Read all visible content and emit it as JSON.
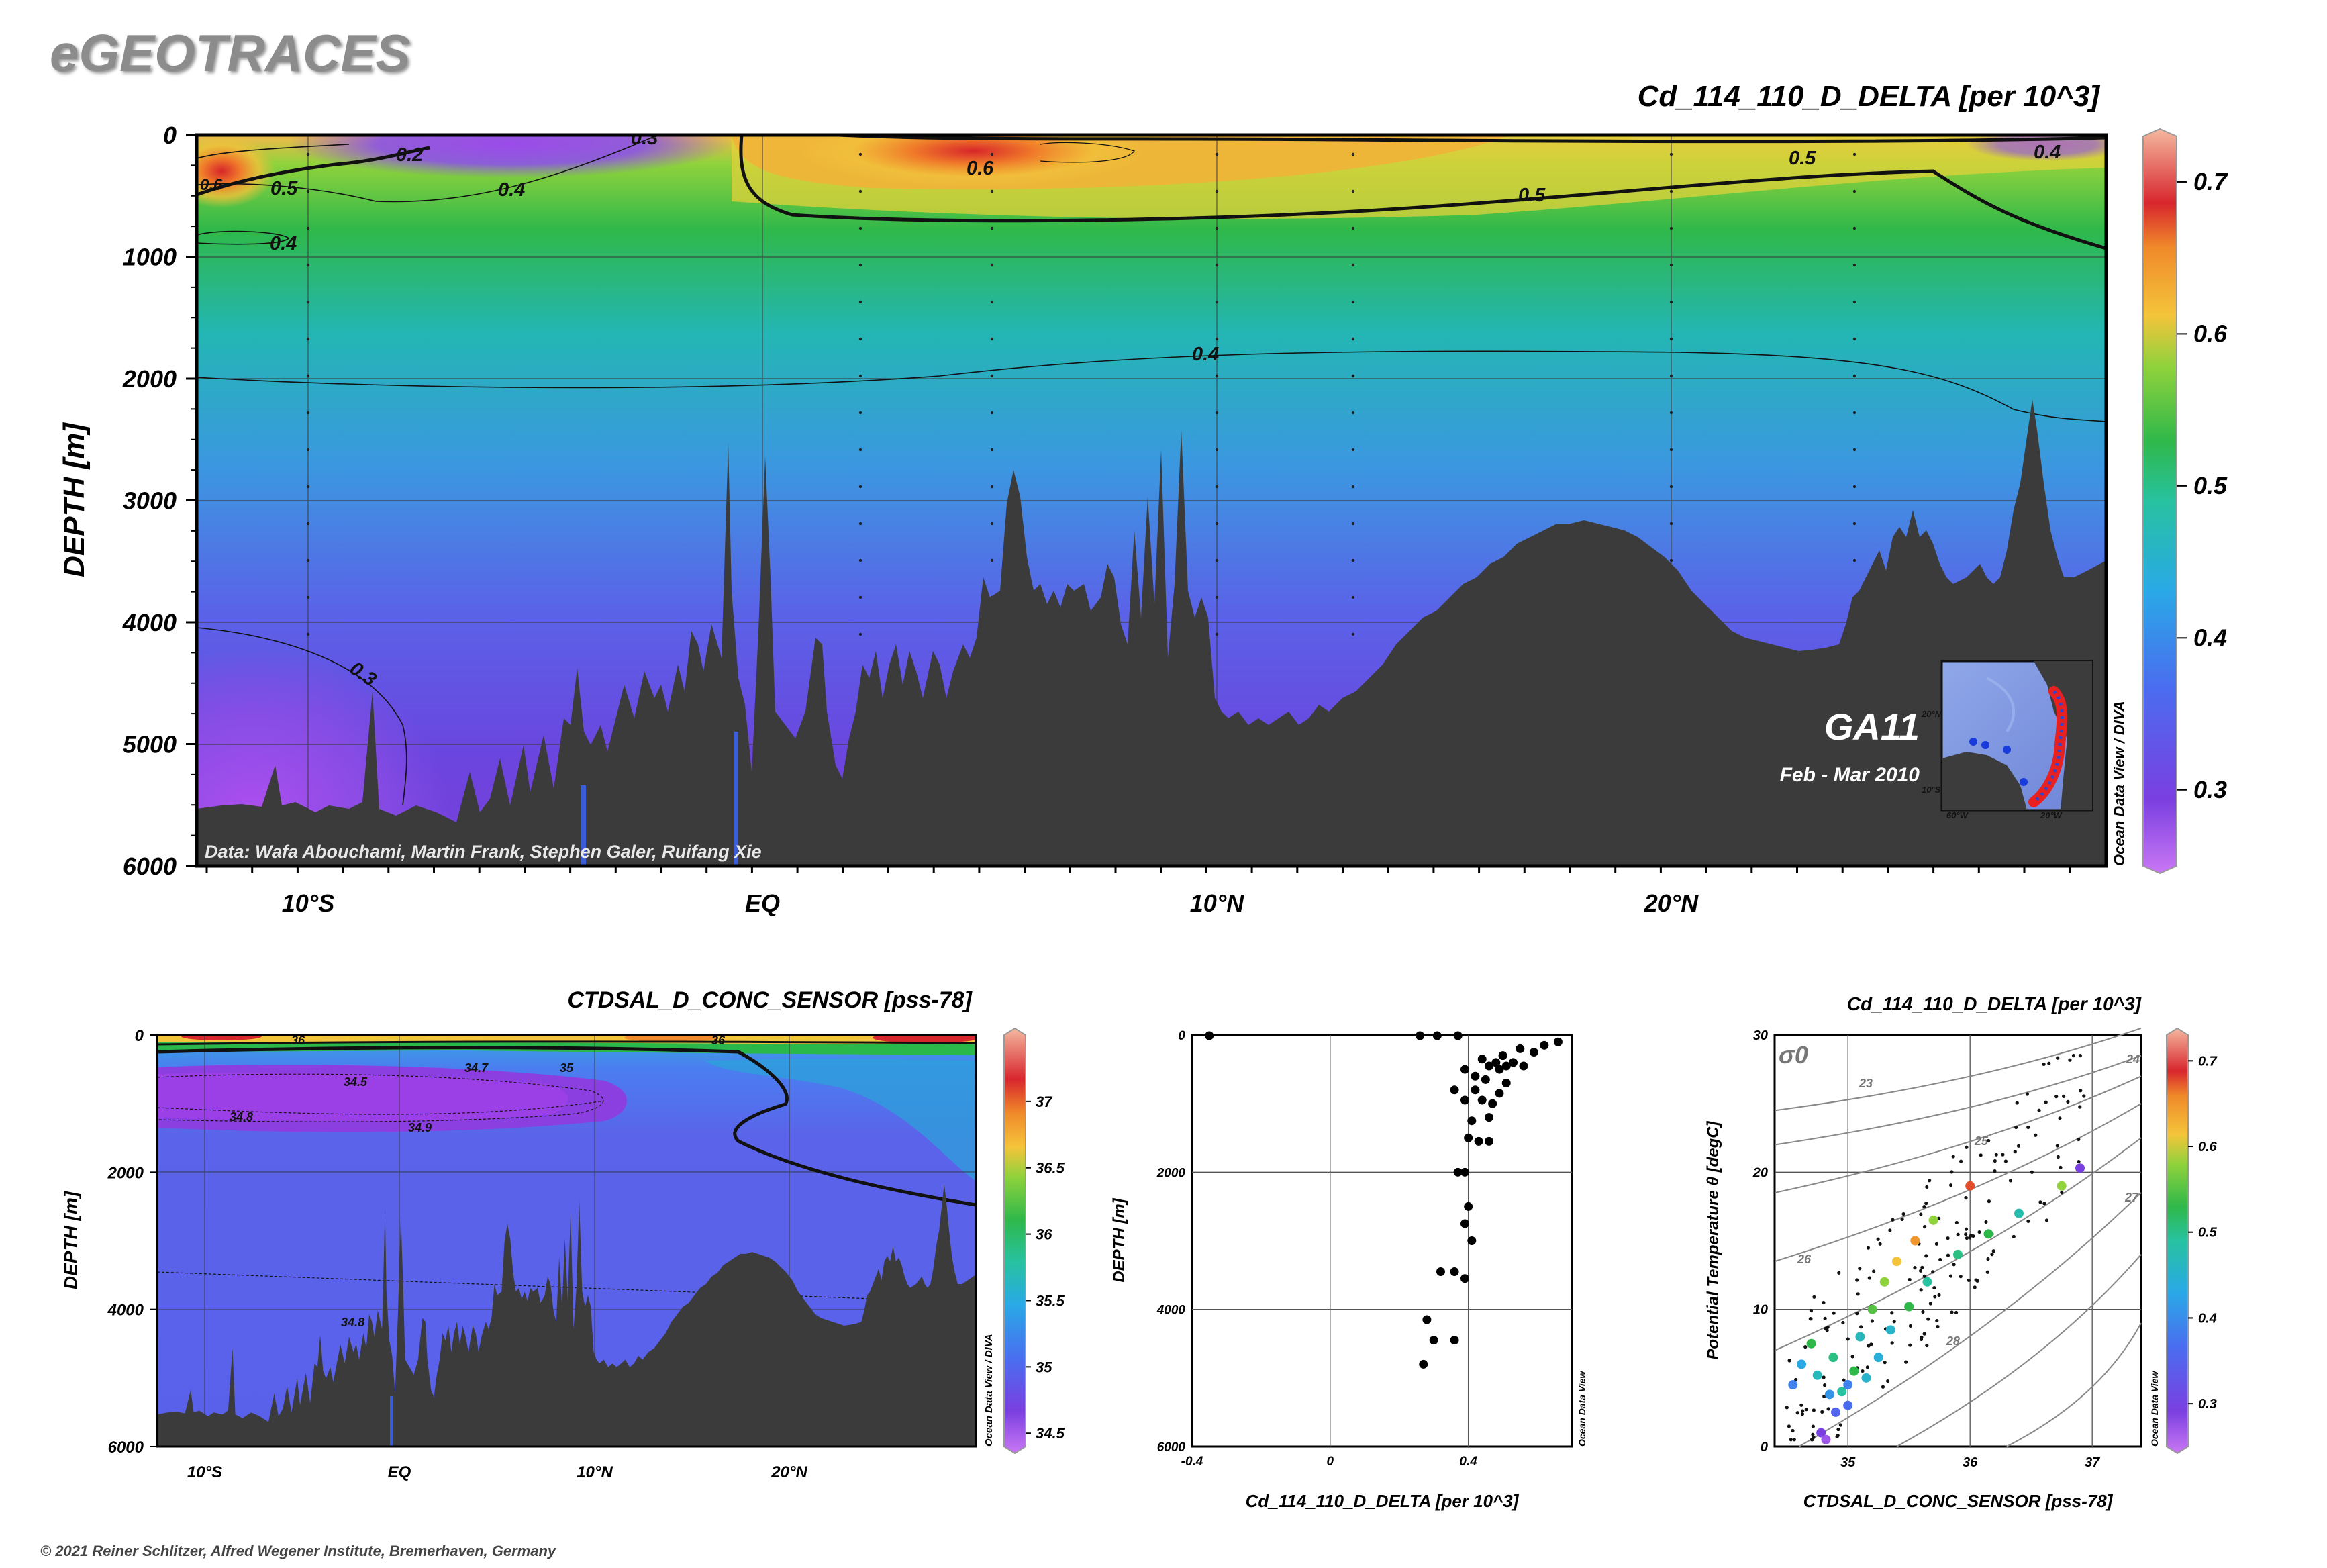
{
  "brand": "eGEOTRACES",
  "copyright": "© 2021 Reiner Schlitzer, Alfred Wegener Institute, Bremerhaven, Germany",
  "chart_data": [
    {
      "id": "main-section",
      "type": "heatmap",
      "title": "Cd_114_110_D_DELTA [per 10^3]",
      "ylabel": "DEPTH [m]",
      "ylim": [
        0,
        6000
      ],
      "y_ticks": [
        0,
        1000,
        2000,
        3000,
        4000,
        5000,
        6000
      ],
      "x_ticks": [
        "10°S",
        "EQ",
        "10°N",
        "20°N"
      ],
      "contour_labels": [
        "0.2",
        "0.3",
        "0.4",
        "0.5",
        "0.6",
        "0.6",
        "0.5",
        "0.5",
        "0.4",
        "0.4",
        "0.4",
        "0.3",
        "0.5"
      ],
      "colorbar": {
        "range": [
          0.25,
          0.73
        ],
        "ticks": [
          "0.3",
          "0.4",
          "0.5",
          "0.6",
          "0.7"
        ]
      },
      "cruise": "GA11",
      "period": "Feb - Mar 2010",
      "credit": "Data: Wafa Abouchami, Martin Frank, Stephen Galer, Ruifang Xie",
      "side_label": "Ocean Data View / DIVA",
      "inset_labels": [
        "60°W",
        "20°W",
        "20°N",
        "10°S"
      ]
    },
    {
      "id": "salinity-section",
      "type": "heatmap",
      "title": "CTDSAL_D_CONC_SENSOR [pss-78]",
      "ylabel": "DEPTH [m]",
      "ylim": [
        0,
        6000
      ],
      "y_ticks": [
        0,
        2000,
        4000,
        6000
      ],
      "x_ticks": [
        "10°S",
        "EQ",
        "10°N",
        "20°N"
      ],
      "contour_labels": [
        "34.5",
        "34.7",
        "34.8",
        "34.9",
        "35",
        "36",
        "36",
        "34.8"
      ],
      "colorbar": {
        "range": [
          34.4,
          37.5
        ],
        "ticks": [
          "34.5",
          "35",
          "35.5",
          "36",
          "36.5",
          "37"
        ]
      },
      "side_label": "Ocean Data View / DIVA"
    },
    {
      "id": "profile",
      "type": "scatter",
      "xlabel": "Cd_114_110_D_DELTA [per 10^3]",
      "ylabel": "DEPTH [m]",
      "xlim": [
        -0.4,
        0.7
      ],
      "ylim": [
        0,
        6000
      ],
      "x_ticks": [
        "-0.4",
        "0",
        "0.4"
      ],
      "y_ticks": [
        "0",
        "2000",
        "4000",
        "6000"
      ],
      "side_label": "Ocean Data View",
      "points": [
        [
          -0.35,
          10
        ],
        [
          0.26,
          10
        ],
        [
          0.31,
          10
        ],
        [
          0.37,
          10
        ],
        [
          0.66,
          100
        ],
        [
          0.62,
          150
        ],
        [
          0.55,
          200
        ],
        [
          0.59,
          250
        ],
        [
          0.5,
          300
        ],
        [
          0.44,
          350
        ],
        [
          0.48,
          400
        ],
        [
          0.53,
          400
        ],
        [
          0.46,
          450
        ],
        [
          0.51,
          450
        ],
        [
          0.56,
          450
        ],
        [
          0.39,
          500
        ],
        [
          0.49,
          500
        ],
        [
          0.42,
          600
        ],
        [
          0.45,
          650
        ],
        [
          0.51,
          700
        ],
        [
          0.36,
          800
        ],
        [
          0.42,
          800
        ],
        [
          0.49,
          850
        ],
        [
          0.39,
          950
        ],
        [
          0.44,
          950
        ],
        [
          0.47,
          1000
        ],
        [
          0.46,
          1200
        ],
        [
          0.41,
          1250
        ],
        [
          0.4,
          1500
        ],
        [
          0.43,
          1550
        ],
        [
          0.46,
          1550
        ],
        [
          0.37,
          2000
        ],
        [
          0.39,
          2000
        ],
        [
          0.4,
          2500
        ],
        [
          0.39,
          2750
        ],
        [
          0.41,
          3000
        ],
        [
          0.32,
          3450
        ],
        [
          0.36,
          3450
        ],
        [
          0.39,
          3550
        ],
        [
          0.28,
          4150
        ],
        [
          0.3,
          4450
        ],
        [
          0.36,
          4450
        ],
        [
          0.27,
          4800
        ]
      ]
    },
    {
      "id": "ts-diagram",
      "type": "scatter",
      "title": "Cd_114_110_D_DELTA [per 10^3]",
      "xlabel": "CTDSAL_D_CONC_SENSOR [pss-78]",
      "ylabel": "Potential Temperature θ [degC]",
      "xlim": [
        34.4,
        37.4
      ],
      "ylim": [
        0,
        30
      ],
      "x_ticks": [
        "35",
        "36",
        "37"
      ],
      "y_ticks": [
        "0",
        "10",
        "20",
        "30"
      ],
      "sigma_label": "σ0",
      "isopycnal_labels": [
        "23",
        "24",
        "25",
        "26",
        "27",
        "28"
      ],
      "colorbar": {
        "range": [
          0.25,
          0.73
        ],
        "ticks": [
          "0.3",
          "0.4",
          "0.5",
          "0.6",
          "0.7"
        ]
      },
      "side_label": "Ocean Data View",
      "colored_points": [
        [
          34.55,
          4.5,
          0.38
        ],
        [
          34.62,
          6.0,
          0.42
        ],
        [
          34.7,
          7.5,
          0.5
        ],
        [
          34.75,
          5.2,
          0.45
        ],
        [
          34.85,
          3.8,
          0.4
        ],
        [
          34.9,
          2.5,
          0.35
        ],
        [
          34.95,
          4.0,
          0.47
        ],
        [
          35.0,
          3.0,
          0.36
        ],
        [
          34.78,
          1.0,
          0.3
        ],
        [
          34.82,
          0.5,
          0.28
        ],
        [
          34.88,
          6.5,
          0.48
        ],
        [
          35.05,
          5.5,
          0.5
        ],
        [
          35.1,
          8.0,
          0.45
        ],
        [
          35.2,
          10.0,
          0.52
        ],
        [
          35.3,
          12.0,
          0.55
        ],
        [
          35.4,
          13.5,
          0.58
        ],
        [
          35.55,
          15.0,
          0.62
        ],
        [
          35.7,
          16.5,
          0.55
        ],
        [
          36.0,
          19.0,
          0.66
        ],
        [
          35.35,
          8.5,
          0.44
        ],
        [
          35.5,
          10.2,
          0.5
        ],
        [
          35.65,
          12.0,
          0.47
        ],
        [
          35.9,
          14.0,
          0.48
        ],
        [
          36.15,
          15.5,
          0.5
        ],
        [
          36.4,
          17.0,
          0.46
        ],
        [
          36.75,
          19.0,
          0.55
        ],
        [
          36.9,
          20.3,
          0.3
        ],
        [
          35.25,
          6.5,
          0.43
        ],
        [
          35.15,
          5.0,
          0.44
        ],
        [
          35.0,
          4.5,
          0.38
        ]
      ]
    }
  ]
}
